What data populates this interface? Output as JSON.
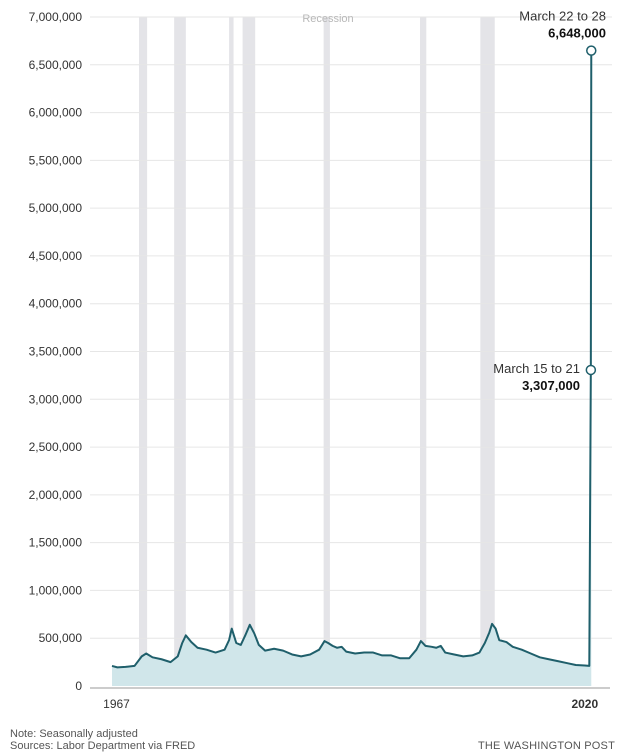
{
  "chart_data": {
    "type": "area",
    "ylim": [
      0,
      7000000
    ],
    "y_ticks": [
      "7,000,000",
      "6,500,000",
      "6,000,000",
      "5,500,000",
      "5,000,000",
      "4,500,000",
      "4,000,000",
      "3,500,000",
      "3,000,000",
      "2,500,000",
      "2,000,000",
      "1,500,000",
      "1,000,000",
      "500,000",
      "0"
    ],
    "y_tick_values": [
      7000000,
      6500000,
      6000000,
      5500000,
      5000000,
      4500000,
      4000000,
      3500000,
      3000000,
      2500000,
      2000000,
      1500000,
      1000000,
      500000,
      0
    ],
    "xlim": [
      1967,
      2020.3
    ],
    "x_labels": [
      {
        "text": "1967",
        "x": 1967.5,
        "bold": false
      },
      {
        "text": "2020",
        "x": 2019.5,
        "bold": true
      }
    ],
    "grid": true,
    "legend": "Recession",
    "recessions": [
      [
        1970.0,
        1970.9
      ],
      [
        1973.9,
        1975.2
      ],
      [
        1980.0,
        1980.5
      ],
      [
        1981.5,
        1982.9
      ],
      [
        1990.5,
        1991.2
      ],
      [
        2001.2,
        2001.9
      ],
      [
        2007.9,
        2009.5
      ]
    ],
    "series": [
      {
        "x": [
          1967.0,
          1967.6,
          1968.5,
          1969.5,
          1970.3,
          1970.8,
          1971.5,
          1972.5,
          1973.5,
          1974.3,
          1974.8,
          1975.2,
          1975.8,
          1976.5,
          1977.5,
          1978.5,
          1979.5,
          1980.0,
          1980.3,
          1980.8,
          1981.3,
          1981.8,
          1982.3,
          1982.8,
          1983.3,
          1984.0,
          1985.0,
          1986.0,
          1987.0,
          1988.0,
          1989.0,
          1990.0,
          1990.6,
          1991.0,
          1991.5,
          1992.0,
          1992.5,
          1993.0,
          1994.0,
          1995.0,
          1996.0,
          1997.0,
          1998.0,
          1999.0,
          2000.0,
          2000.8,
          2001.3,
          2001.8,
          2002.5,
          2003.0,
          2003.5,
          2004.0,
          2005.0,
          2006.0,
          2007.0,
          2007.8,
          2008.4,
          2008.9,
          2009.2,
          2009.6,
          2010.0,
          2010.8,
          2011.5,
          2012.5,
          2013.5,
          2014.5,
          2015.5,
          2016.5,
          2017.5,
          2018.5,
          2019.5,
          2020.0,
          2020.17,
          2020.22
        ],
        "values": [
          210000,
          195000,
          200000,
          210000,
          310000,
          340000,
          300000,
          280000,
          250000,
          310000,
          450000,
          530000,
          460000,
          400000,
          380000,
          350000,
          380000,
          480000,
          600000,
          450000,
          430000,
          530000,
          640000,
          550000,
          430000,
          370000,
          390000,
          370000,
          330000,
          310000,
          330000,
          380000,
          470000,
          450000,
          420000,
          400000,
          410000,
          360000,
          340000,
          350000,
          350000,
          320000,
          320000,
          290000,
          290000,
          380000,
          470000,
          420000,
          410000,
          400000,
          420000,
          350000,
          330000,
          310000,
          320000,
          350000,
          450000,
          560000,
          650000,
          600000,
          480000,
          460000,
          410000,
          380000,
          340000,
          300000,
          280000,
          260000,
          240000,
          220000,
          215000,
          211000,
          3307000,
          6648000
        ]
      }
    ],
    "annotations": [
      {
        "date": "March 22 to 28",
        "value": "6,648,000",
        "x": 2020.22,
        "y": 6648000
      },
      {
        "date": "March 15 to 21",
        "value": "3,307,000",
        "x": 2020.17,
        "y": 3307000
      }
    ],
    "colors": {
      "line": "#1f5f6b",
      "area": "#d0e6ea",
      "recession": "#e4e4e8",
      "grid": "#e6e6e6"
    }
  },
  "footer": {
    "note": "Note: Seasonally adjusted",
    "sources": "Sources: Labor Department via FRED",
    "brand": "THE WASHINGTON POST"
  }
}
